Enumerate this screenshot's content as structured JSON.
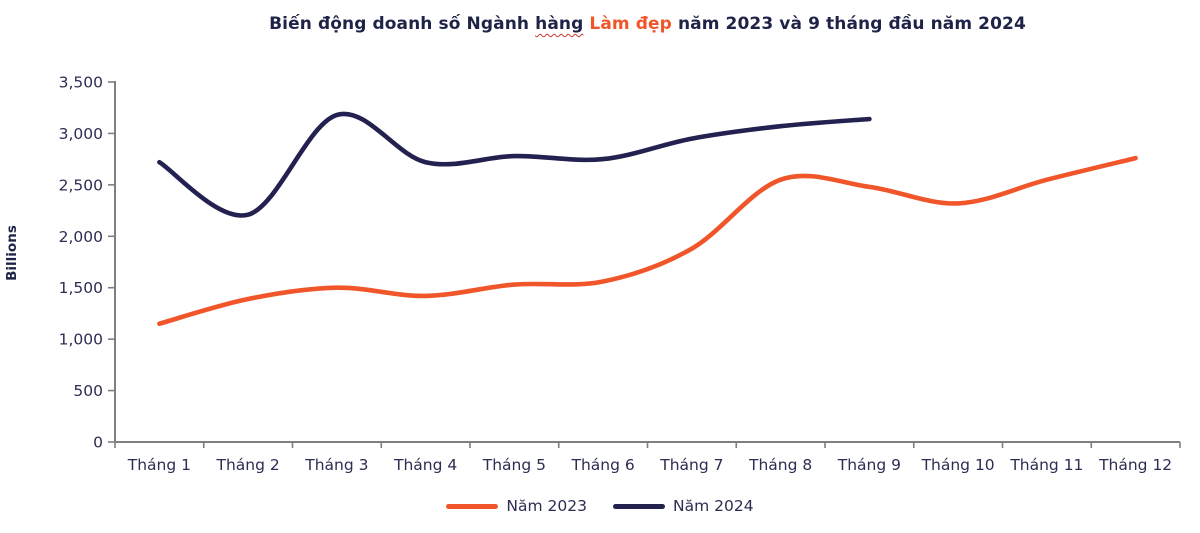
{
  "title": {
    "part1": "Biến động doanh số Ngành ",
    "underlined_word": "hàng",
    "highlight": "Làm đẹp",
    "part2": " năm 2023 và 9 tháng đầu năm 2024"
  },
  "palette": {
    "orange": "#f0562a",
    "navy": "#232150",
    "title_text": "#1f2347",
    "tick_text": "#2c2e52",
    "axis_gray": "#7f7f7f",
    "spellcheck_red": "#c9392d"
  },
  "chart_data": {
    "type": "line",
    "title": "Biến động doanh số Ngành hàng Làm đẹp năm 2023 và 9 tháng đầu năm 2024",
    "xlabel": "",
    "ylabel": "Billions",
    "curve": "smooth",
    "grid": false,
    "legend_position": "bottom",
    "ylim": [
      0,
      3500
    ],
    "yticks": [
      0,
      500,
      1000,
      1500,
      2000,
      2500,
      3000,
      3500
    ],
    "ytick_labels": [
      "0",
      "500",
      "1,000",
      "1,500",
      "2,000",
      "2,500",
      "3,000",
      "3,500"
    ],
    "categories": [
      "Tháng 1",
      "Tháng 2",
      "Tháng 3",
      "Tháng 4",
      "Tháng 5",
      "Tháng 6",
      "Tháng 7",
      "Tháng 8",
      "Tháng 9",
      "Tháng 10",
      "Tháng 11",
      "Tháng 12"
    ],
    "series": [
      {
        "name": "Năm 2023",
        "color": "#f0562a",
        "values": [
          1150,
          1390,
          1500,
          1420,
          1530,
          1560,
          1880,
          2550,
          2480,
          2320,
          2550,
          2760
        ]
      },
      {
        "name": "Năm 2024",
        "color": "#232150",
        "values": [
          2720,
          2210,
          3180,
          2720,
          2780,
          2750,
          2950,
          3070,
          3140
        ]
      }
    ]
  }
}
